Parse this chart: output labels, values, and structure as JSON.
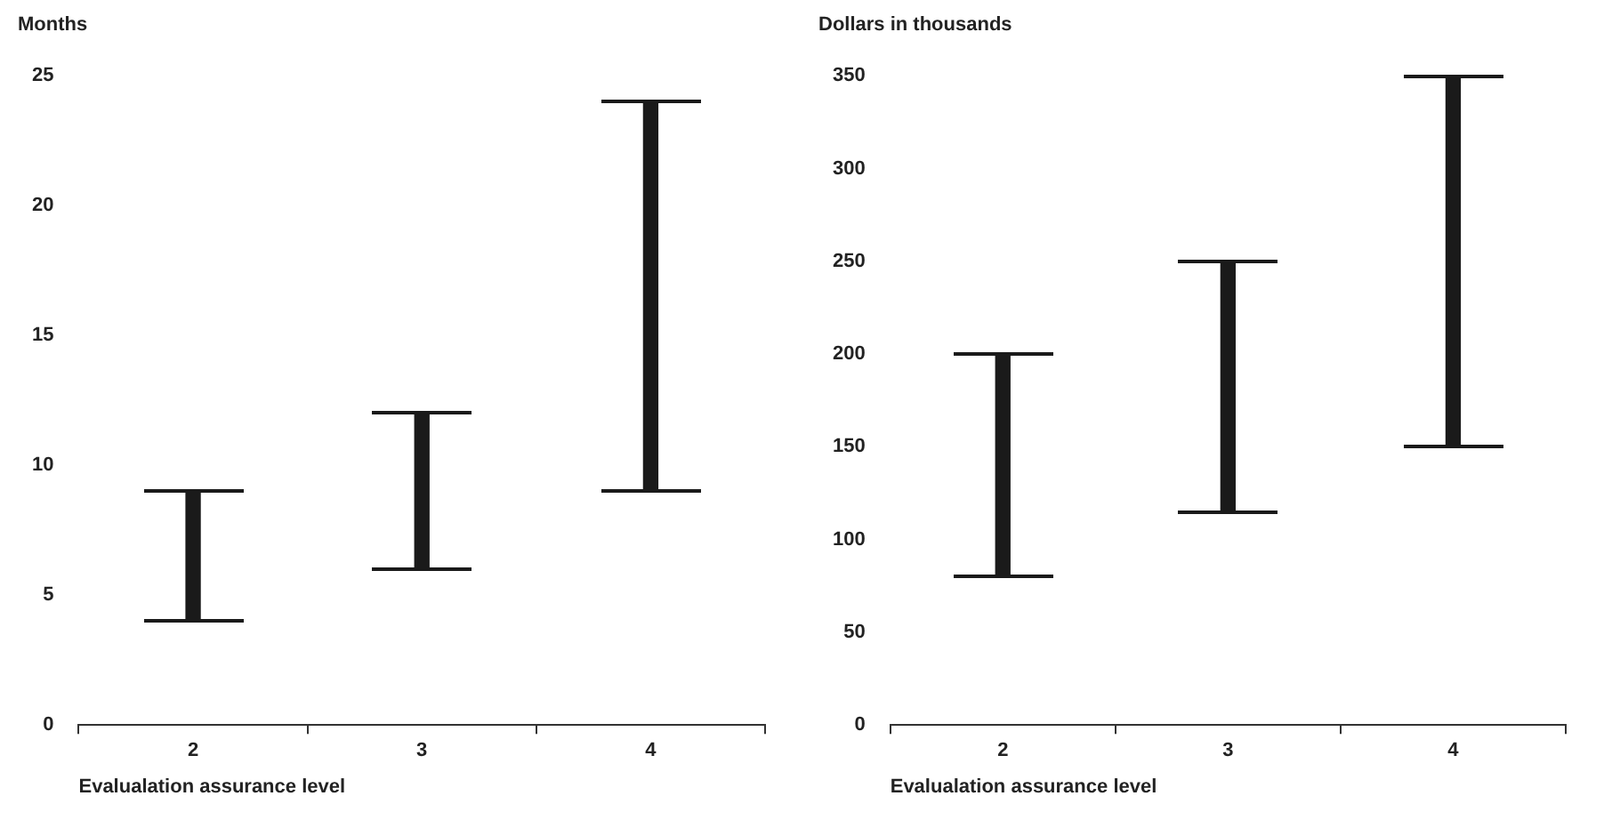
{
  "chart_data": [
    {
      "type": "bar",
      "ylabel": "Months",
      "xlabel": "Evalualation assurance level",
      "categories": [
        "2",
        "3",
        "4"
      ],
      "values": [
        5,
        6,
        15
      ],
      "base": [
        4,
        6,
        9
      ],
      "color": "#1a1a1a",
      "ylim": [
        0,
        25
      ],
      "yticks": [
        0,
        5,
        10,
        15,
        20,
        25
      ],
      "grid": false,
      "legend": false
    },
    {
      "type": "bar",
      "ylabel": "Dollars in thousands",
      "xlabel": "Evalualation assurance level",
      "categories": [
        "2",
        "3",
        "4"
      ],
      "values": [
        120,
        135,
        200
      ],
      "base": [
        80,
        115,
        150
      ],
      "color": "#1a1a1a",
      "ylim": [
        0,
        350
      ],
      "yticks": [
        0,
        50,
        100,
        150,
        200,
        250,
        300,
        350
      ],
      "grid": false,
      "legend": false
    }
  ]
}
